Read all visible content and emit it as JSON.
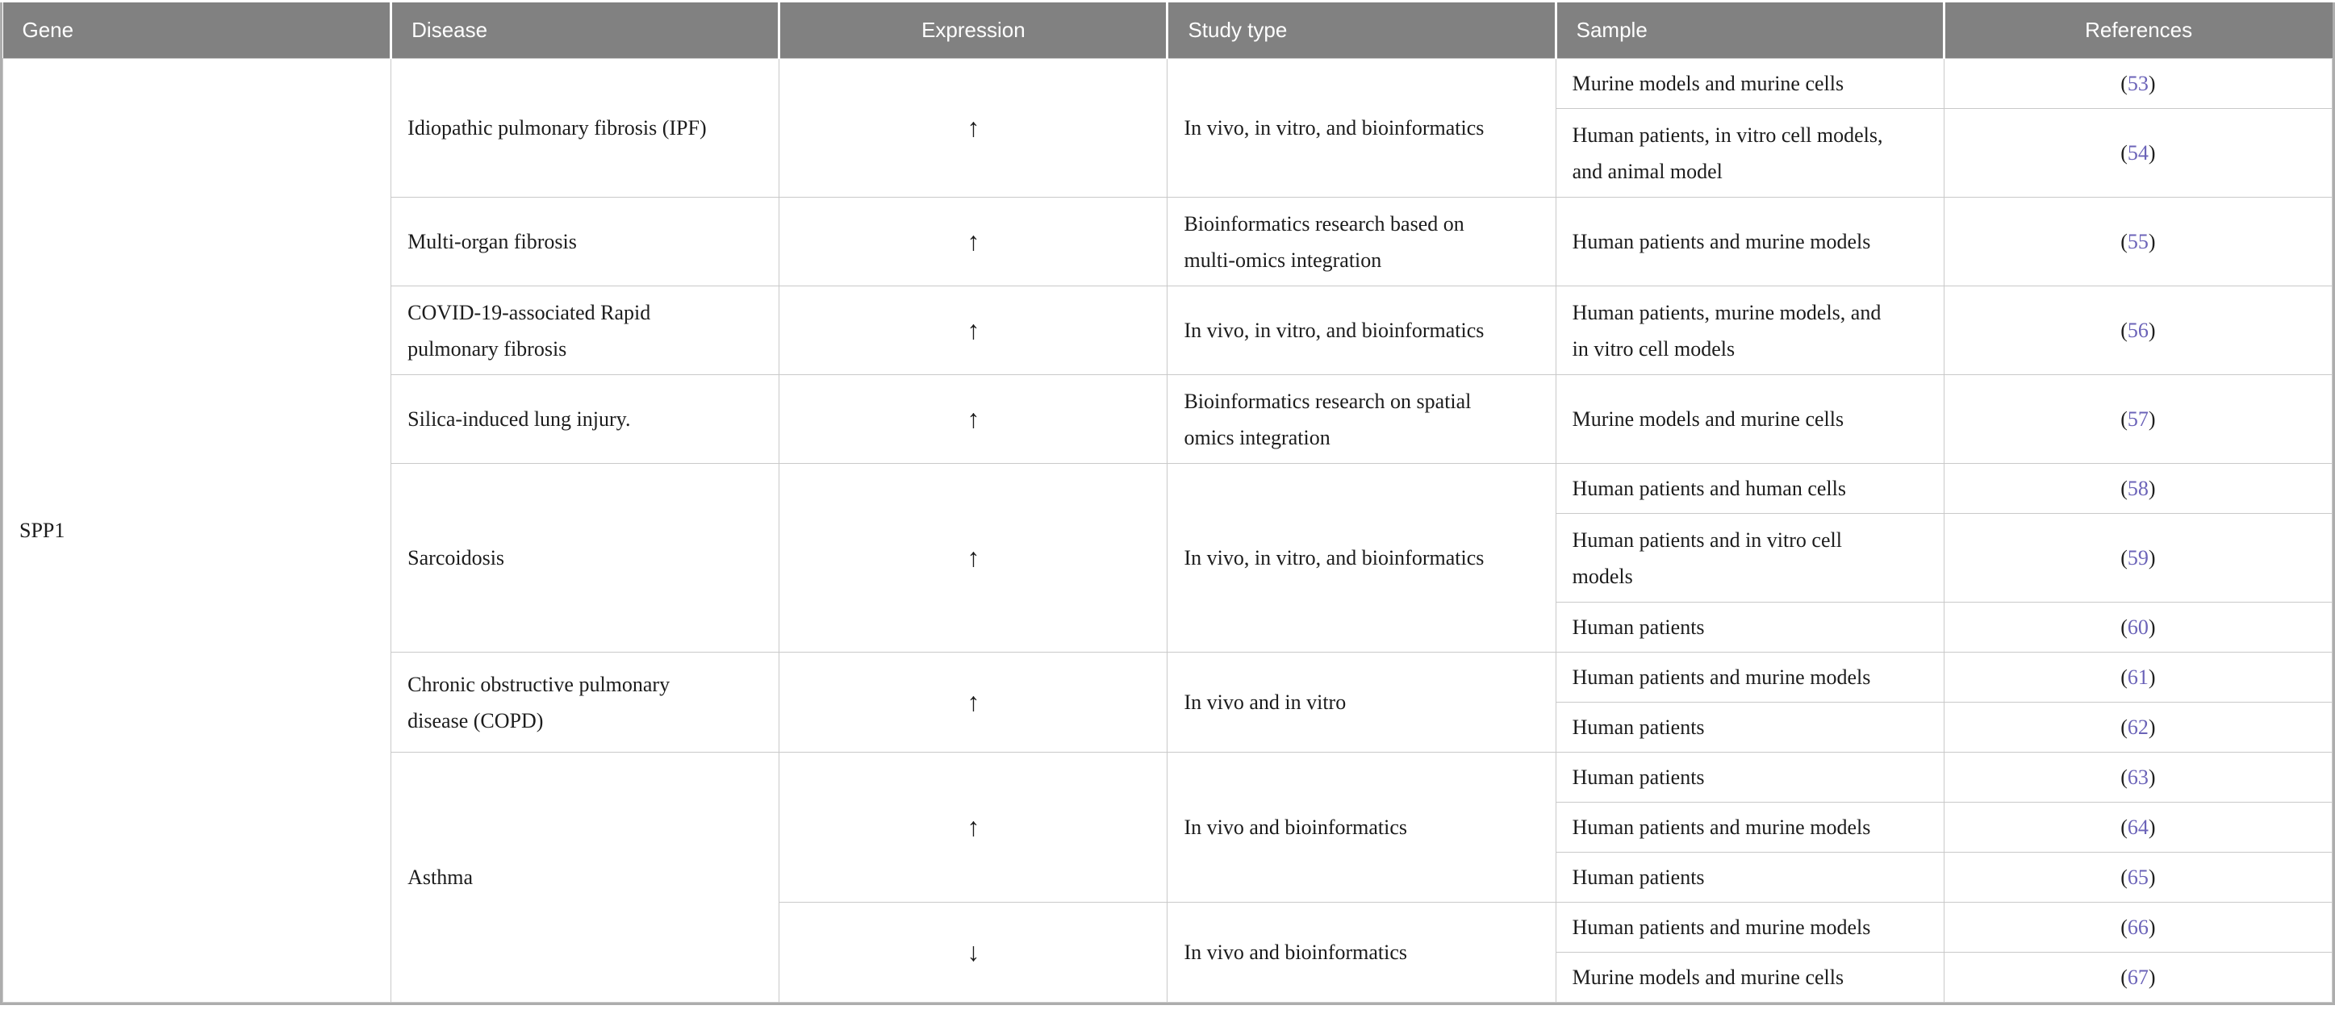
{
  "header": {
    "columns": [
      {
        "label": "Gene"
      },
      {
        "label": "Disease"
      },
      {
        "label": "Expression"
      },
      {
        "label": "Study type"
      },
      {
        "label": "Sample"
      },
      {
        "label": "References"
      }
    ]
  },
  "punct": {
    "open": "(",
    "close": ")"
  },
  "gene": "SPP1",
  "diseases": [
    {
      "name": "Idiopathic pulmonary fibrosis (IPF)",
      "subgroups": [
        {
          "expression": "↑",
          "study": "In vivo, in vitro, and bioinformatics",
          "entries": [
            {
              "sample": "Murine models and murine cells",
              "ref": "53"
            },
            {
              "sample": [
                "Human patients, in vitro cell models,",
                "and animal model"
              ],
              "ref": "54"
            }
          ]
        }
      ]
    },
    {
      "name": "Multi-organ fibrosis",
      "subgroups": [
        {
          "expression": "↑",
          "study": [
            "Bioinformatics research based on",
            "multi-omics integration"
          ],
          "entries": [
            {
              "sample": "Human patients and murine models",
              "ref": "55"
            }
          ]
        }
      ]
    },
    {
      "name": [
        "COVID-19-associated Rapid",
        "pulmonary fibrosis"
      ],
      "subgroups": [
        {
          "expression": "↑",
          "study": "In vivo, in vitro, and bioinformatics",
          "entries": [
            {
              "sample": [
                "Human patients, murine models, and",
                "in vitro cell models"
              ],
              "ref": "56"
            }
          ]
        }
      ]
    },
    {
      "name": "Silica-induced lung injury.",
      "subgroups": [
        {
          "expression": "↑",
          "study": [
            "Bioinformatics research on spatial",
            "omics integration"
          ],
          "entries": [
            {
              "sample": "Murine models and murine cells",
              "ref": "57"
            }
          ]
        }
      ]
    },
    {
      "name": "Sarcoidosis",
      "subgroups": [
        {
          "expression": "↑",
          "study": "In vivo, in vitro, and bioinformatics",
          "entries": [
            {
              "sample": "Human patients and human cells",
              "ref": "58"
            },
            {
              "sample": [
                "Human patients and in vitro cell",
                "models"
              ],
              "ref": "59"
            },
            {
              "sample": "Human patients",
              "ref": "60"
            }
          ]
        }
      ]
    },
    {
      "name": [
        "Chronic obstructive pulmonary",
        "disease (COPD)"
      ],
      "subgroups": [
        {
          "expression": "↑",
          "study": "In vivo and in vitro",
          "entries": [
            {
              "sample": "Human patients and murine models",
              "ref": "61"
            },
            {
              "sample": "Human patients",
              "ref": "62"
            }
          ]
        }
      ]
    },
    {
      "name": "Asthma",
      "subgroups": [
        {
          "expression": "↑",
          "study": "In vivo and bioinformatics",
          "entries": [
            {
              "sample": "Human patients",
              "ref": "63"
            },
            {
              "sample": "Human patients and murine models",
              "ref": "64"
            },
            {
              "sample": "Human patients",
              "ref": "65"
            }
          ]
        },
        {
          "expression": "↓",
          "study": "In vivo and bioinformatics",
          "entries": [
            {
              "sample": "Human patients and murine models",
              "ref": "66"
            },
            {
              "sample": "Murine models and murine cells",
              "ref": "67"
            }
          ]
        }
      ]
    }
  ]
}
